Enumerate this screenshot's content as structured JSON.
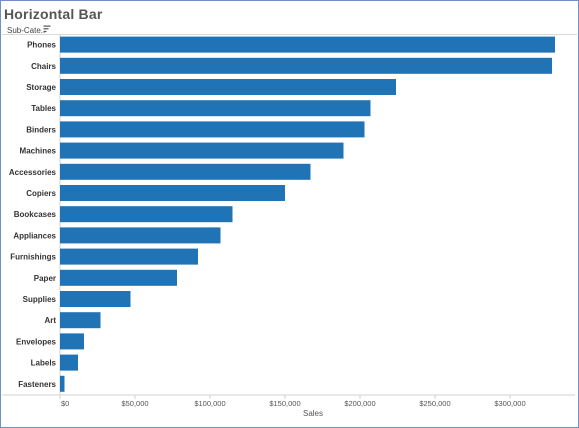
{
  "title": "Horizontal Bar",
  "row_header": "Sub-Cate..",
  "colors": {
    "bar": "#2073b4",
    "title": "#555555",
    "border": "#6f8fc7"
  },
  "icons": {
    "sort": "sort-descending-icon"
  },
  "chart_data": {
    "type": "bar",
    "orientation": "horizontal",
    "title": "Horizontal Bar",
    "xlabel": "Sales",
    "ylabel": "Sub-Cate..",
    "xlim": [
      0,
      340000
    ],
    "x_ticks": [
      0,
      50000,
      100000,
      150000,
      200000,
      250000,
      300000
    ],
    "x_tick_labels": [
      "$0",
      "$50,000",
      "$100,000",
      "$150,000",
      "$200,000",
      "$250,000",
      "$300,000"
    ],
    "grid": false,
    "categories": [
      "Phones",
      "Chairs",
      "Storage",
      "Tables",
      "Binders",
      "Machines",
      "Accessories",
      "Copiers",
      "Bookcases",
      "Appliances",
      "Furnishings",
      "Paper",
      "Supplies",
      "Art",
      "Envelopes",
      "Labels",
      "Fasteners"
    ],
    "values": [
      330000,
      328000,
      224000,
      207000,
      203000,
      189000,
      167000,
      150000,
      115000,
      107000,
      92000,
      78000,
      47000,
      27000,
      16000,
      12000,
      3000
    ]
  }
}
